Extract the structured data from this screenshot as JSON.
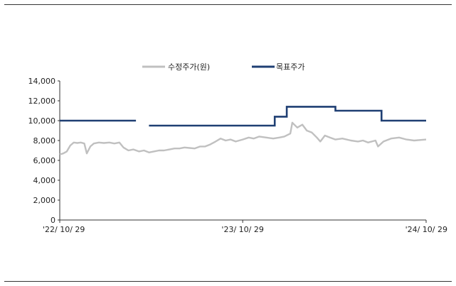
{
  "chart_data": {
    "type": "line",
    "ylim": [
      0,
      14000
    ],
    "y_ticks": [
      "0",
      "2,000",
      "4,000",
      "6,000",
      "8,000",
      "10,000",
      "12,000",
      "14,000"
    ],
    "y_tick_values": [
      0,
      2000,
      4000,
      6000,
      8000,
      10000,
      12000,
      14000
    ],
    "x_ticks": [
      "'22/ 10/ 29",
      "'23/ 10/ 29",
      "'24/ 10/ 29"
    ],
    "x_tick_dates": [
      "2022-10-29",
      "2023-10-29",
      "2024-10-29"
    ],
    "xlim": [
      "2022-10-29",
      "2024-10-29"
    ],
    "grid": false,
    "legend_position": "top-center",
    "series": [
      {
        "name": "수정주가(원)",
        "color": "#c0c0c0",
        "style": "line",
        "points": [
          [
            "2022-10-29",
            6600
          ],
          [
            "2022-11-05",
            6700
          ],
          [
            "2022-11-12",
            6900
          ],
          [
            "2022-11-19",
            7500
          ],
          [
            "2022-11-26",
            7800
          ],
          [
            "2022-12-03",
            7750
          ],
          [
            "2022-12-10",
            7800
          ],
          [
            "2022-12-17",
            7700
          ],
          [
            "2022-12-22",
            6700
          ],
          [
            "2022-12-29",
            7400
          ],
          [
            "2023-01-05",
            7700
          ],
          [
            "2023-01-15",
            7800
          ],
          [
            "2023-01-25",
            7750
          ],
          [
            "2023-02-05",
            7800
          ],
          [
            "2023-02-15",
            7700
          ],
          [
            "2023-02-25",
            7800
          ],
          [
            "2023-03-05",
            7300
          ],
          [
            "2023-03-15",
            7000
          ],
          [
            "2023-03-25",
            7100
          ],
          [
            "2023-04-05",
            6900
          ],
          [
            "2023-04-15",
            7000
          ],
          [
            "2023-04-25",
            6800
          ],
          [
            "2023-05-05",
            6900
          ],
          [
            "2023-05-15",
            7000
          ],
          [
            "2023-05-25",
            7000
          ],
          [
            "2023-06-05",
            7100
          ],
          [
            "2023-06-15",
            7200
          ],
          [
            "2023-06-25",
            7200
          ],
          [
            "2023-07-05",
            7300
          ],
          [
            "2023-07-15",
            7250
          ],
          [
            "2023-07-25",
            7200
          ],
          [
            "2023-08-05",
            7400
          ],
          [
            "2023-08-15",
            7400
          ],
          [
            "2023-08-25",
            7600
          ],
          [
            "2023-09-05",
            7900
          ],
          [
            "2023-09-15",
            8200
          ],
          [
            "2023-09-25",
            8000
          ],
          [
            "2023-10-05",
            8100
          ],
          [
            "2023-10-15",
            7900
          ],
          [
            "2023-10-29",
            8100
          ],
          [
            "2023-11-10",
            8300
          ],
          [
            "2023-11-20",
            8200
          ],
          [
            "2023-12-01",
            8400
          ],
          [
            "2023-12-15",
            8300
          ],
          [
            "2023-12-29",
            8200
          ],
          [
            "2024-01-10",
            8300
          ],
          [
            "2024-01-20",
            8400
          ],
          [
            "2024-02-01",
            8700
          ],
          [
            "2024-02-05",
            9800
          ],
          [
            "2024-02-15",
            9300
          ],
          [
            "2024-02-25",
            9600
          ],
          [
            "2024-03-05",
            9000
          ],
          [
            "2024-03-15",
            8800
          ],
          [
            "2024-03-25",
            8300
          ],
          [
            "2024-04-01",
            7900
          ],
          [
            "2024-04-10",
            8500
          ],
          [
            "2024-04-20",
            8300
          ],
          [
            "2024-05-01",
            8100
          ],
          [
            "2024-05-15",
            8200
          ],
          [
            "2024-06-01",
            8000
          ],
          [
            "2024-06-15",
            7900
          ],
          [
            "2024-06-25",
            8000
          ],
          [
            "2024-07-05",
            7800
          ],
          [
            "2024-07-20",
            8000
          ],
          [
            "2024-07-25",
            7400
          ],
          [
            "2024-08-05",
            7900
          ],
          [
            "2024-08-20",
            8200
          ],
          [
            "2024-09-05",
            8300
          ],
          [
            "2024-09-20",
            8100
          ],
          [
            "2024-10-05",
            8000
          ],
          [
            "2024-10-29",
            8100
          ]
        ]
      },
      {
        "name": "목표주가",
        "color": "#1f3f73",
        "style": "step",
        "segments": [
          {
            "start": "2022-10-29",
            "end": "2023-03-30",
            "value": 10000
          },
          {
            "start": "2023-04-25",
            "end": "2024-01-01",
            "value": 9500
          },
          {
            "start": "2024-01-01",
            "end": "2024-01-25",
            "value": 10400
          },
          {
            "start": "2024-01-25",
            "end": "2024-05-01",
            "value": 11400
          },
          {
            "start": "2024-05-01",
            "end": "2024-08-01",
            "value": 11000
          },
          {
            "start": "2024-08-01",
            "end": "2024-10-29",
            "value": 10000
          }
        ]
      }
    ]
  }
}
